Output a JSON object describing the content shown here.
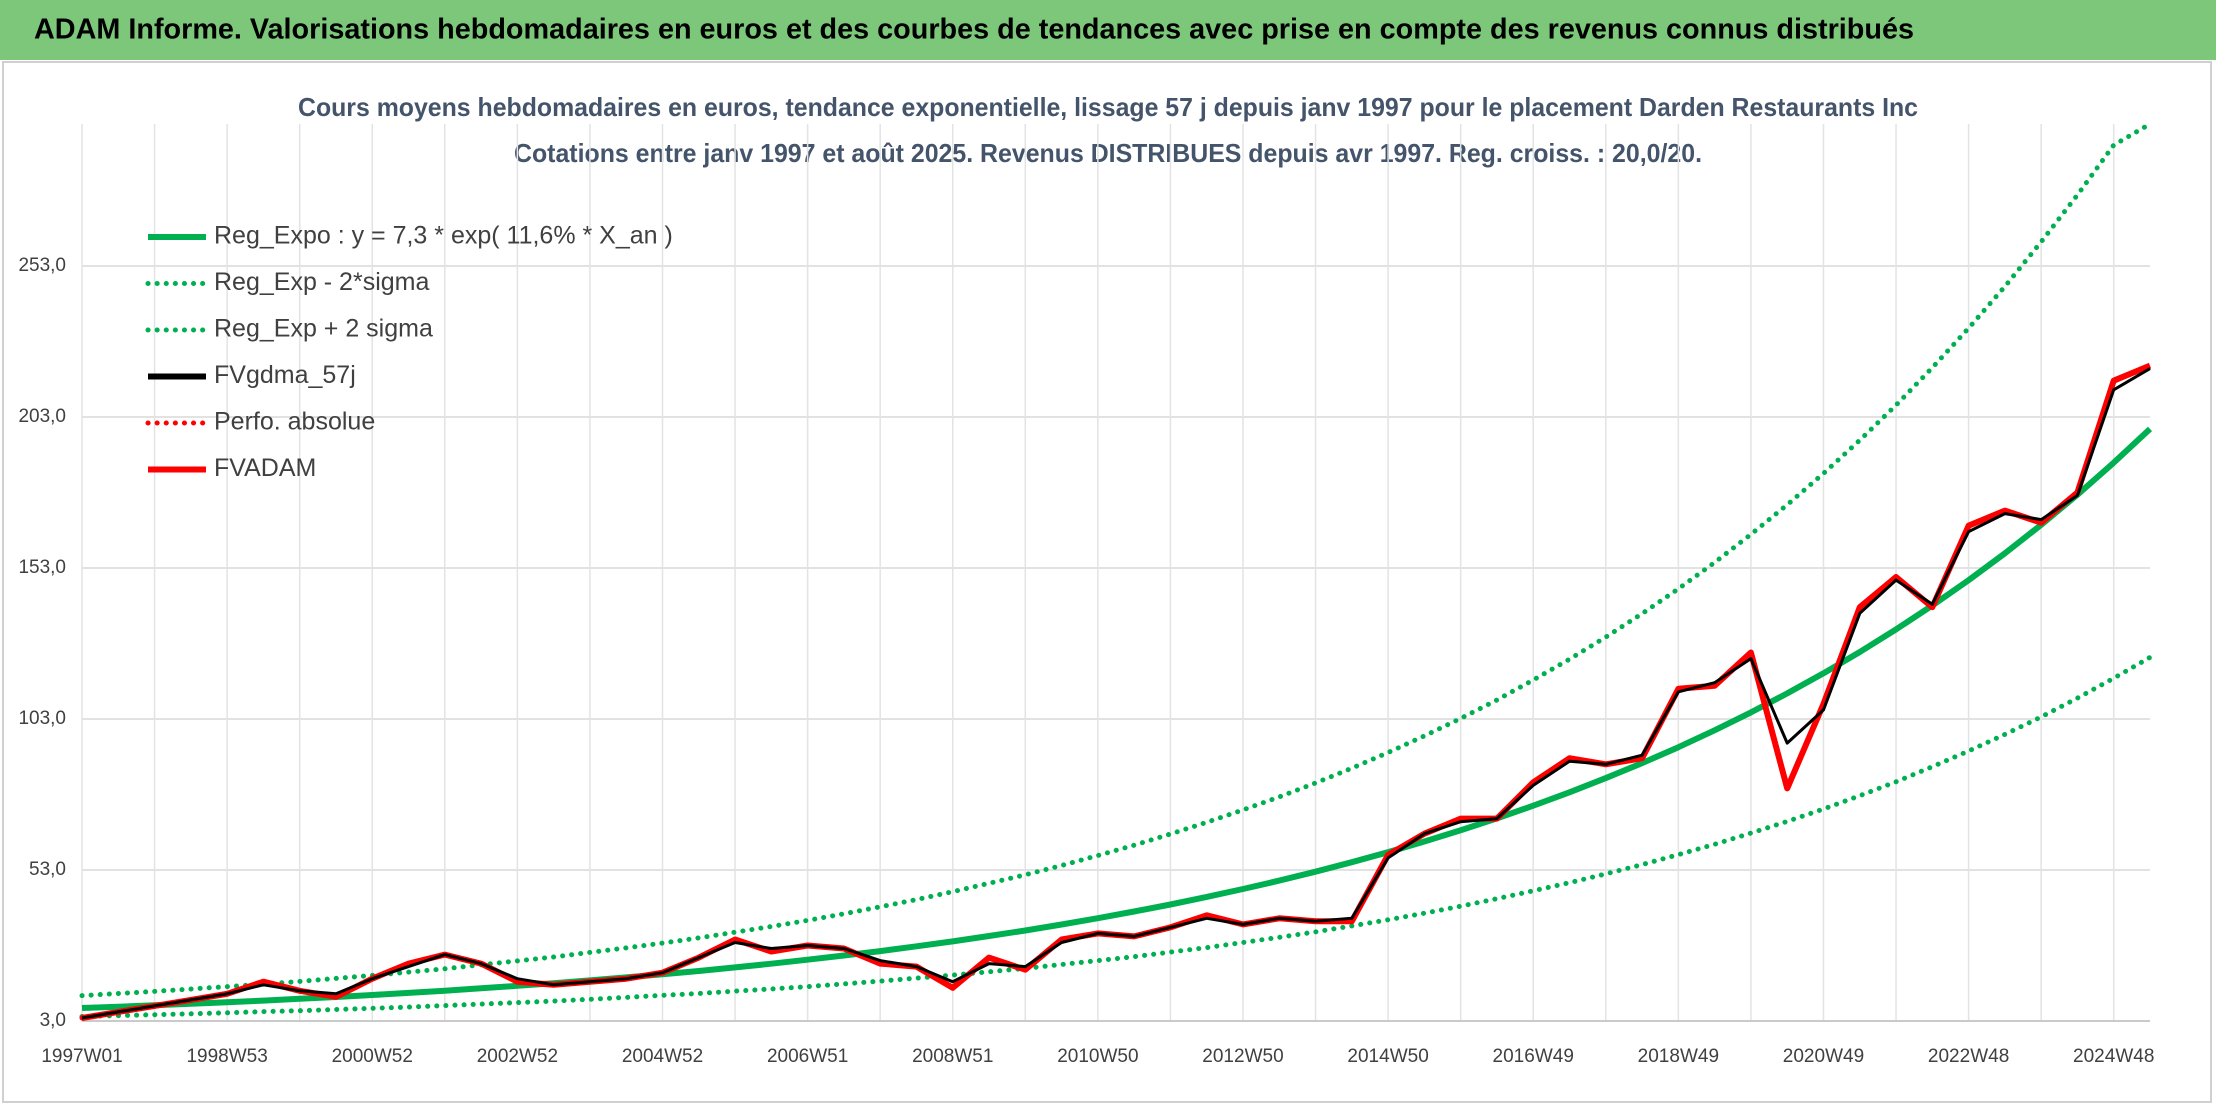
{
  "header": {
    "title": "ADAM Informe. Valorisations hebdomadaires en euros et des courbes de tendances avec prise en compte des revenus connus distribués"
  },
  "chart_data": {
    "type": "line",
    "title": "Cours moyens hebdomadaires en euros, tendance exponentielle, lissage 57 j depuis janv 1997 pour le placement Darden Restaurants Inc",
    "subtitle": "Cotations entre janv 1997 et août 2025. Revenus DISTRIBUES depuis avr 1997. Reg. croiss. : 20,0/20.",
    "categories": [
      "1997W01",
      null,
      null,
      null,
      "1998W53",
      null,
      null,
      null,
      "2000W52",
      null,
      null,
      null,
      "2002W52",
      null,
      null,
      null,
      "2004W52",
      null,
      null,
      null,
      "2006W51",
      null,
      null,
      null,
      "2008W51",
      null,
      null,
      null,
      "2010W50",
      null,
      null,
      null,
      "2012W50",
      null,
      null,
      null,
      "2014W50",
      null,
      null,
      null,
      "2016W49",
      null,
      null,
      null,
      "2018W49",
      null,
      null,
      null,
      "2020W49",
      null,
      null,
      null,
      "2022W48",
      null,
      null,
      null,
      "2024W48",
      null
    ],
    "ylim": [
      3,
      300
    ],
    "yticks": [
      {
        "value": 3,
        "label": "3,0"
      },
      {
        "value": 53,
        "label": "53,0"
      },
      {
        "value": 103,
        "label": "103,0"
      },
      {
        "value": 153,
        "label": "153,0"
      },
      {
        "value": 203,
        "label": "203,0"
      },
      {
        "value": 253,
        "label": "253,0"
      }
    ],
    "grid": true,
    "legend": "top-left",
    "series": [
      {
        "name": "Reg_Expo : y = 7,3 * exp( 11,6% *  X_an )",
        "color": "#00b050",
        "style": "solid",
        "values": [
          7.3,
          7.74,
          8.2,
          8.69,
          9.21,
          9.76,
          10.34,
          10.96,
          11.61,
          12.31,
          13.04,
          13.82,
          14.65,
          15.52,
          16.45,
          17.43,
          18.47,
          19.57,
          20.74,
          21.98,
          23.29,
          24.68,
          26.16,
          27.72,
          29.37,
          31.13,
          32.98,
          34.95,
          37.04,
          39.25,
          41.59,
          44.08,
          46.71,
          49.5,
          52.45,
          55.58,
          58.9,
          62.42,
          66.14,
          70.09,
          74.28,
          78.71,
          83.41,
          88.39,
          93.67,
          99.26,
          105.19,
          111.47,
          118.12,
          125.18,
          132.65,
          140.57,
          148.96,
          157.85,
          167.28,
          177.26,
          187.85,
          199.06
        ]
      },
      {
        "name": "Reg_Exp - 2*sigma",
        "color": "#00b050",
        "style": "dotted",
        "values": [
          4.5,
          4.8,
          5.1,
          5.4,
          5.7,
          6.1,
          6.4,
          6.8,
          7.2,
          7.6,
          8.1,
          8.6,
          9.1,
          9.6,
          10.2,
          10.8,
          11.5,
          12.1,
          12.9,
          13.6,
          14.4,
          15.3,
          16.2,
          17.2,
          18.2,
          19.3,
          20.4,
          21.7,
          23.0,
          24.3,
          25.8,
          27.3,
          29.0,
          30.7,
          32.5,
          34.5,
          36.5,
          38.7,
          41.0,
          43.5,
          46.1,
          48.8,
          51.7,
          54.8,
          58.1,
          61.5,
          65.2,
          69.1,
          73.2,
          77.6,
          82.2,
          87.2,
          92.4,
          97.9,
          103.7,
          109.9,
          116.5,
          123.4
        ]
      },
      {
        "name": "Reg_Exp + 2 sigma",
        "color": "#00b050",
        "style": "dotted",
        "values": [
          11.4,
          12.1,
          12.8,
          13.6,
          14.4,
          15.2,
          16.1,
          17.1,
          18.1,
          19.2,
          20.3,
          21.6,
          22.9,
          24.2,
          25.7,
          27.2,
          28.8,
          30.5,
          32.4,
          34.3,
          36.3,
          38.5,
          40.8,
          43.2,
          45.8,
          48.6,
          51.4,
          54.5,
          57.8,
          61.2,
          64.9,
          68.8,
          72.9,
          77.2,
          81.8,
          86.7,
          91.9,
          97.4,
          103.2,
          109.3,
          115.9,
          122.8,
          130.1,
          137.9,
          146.1,
          154.8,
          164.1,
          173.9,
          184.3,
          195.3,
          206.9,
          219.3,
          232.4,
          246.2,
          261.0,
          276.5,
          293.0,
          300
        ]
      },
      {
        "name": "FVgdma_57j",
        "color": "#000000",
        "style": "solid",
        "values": [
          4,
          6,
          8,
          10,
          12,
          15,
          13,
          12,
          17,
          21,
          25,
          22,
          17,
          15,
          16,
          17,
          19,
          24,
          29,
          27,
          28,
          27,
          23,
          21,
          16,
          22,
          21,
          29,
          32,
          31,
          34,
          37,
          35,
          37,
          36,
          37,
          57,
          65,
          69,
          70,
          81,
          89,
          88,
          91,
          112,
          115,
          123,
          95,
          106,
          138,
          149,
          141,
          165,
          171,
          169,
          177,
          212,
          219
        ]
      },
      {
        "name": "Perfo. absolue",
        "color": "#ff0000",
        "style": "dotted",
        "values": [
          4,
          6,
          8,
          10,
          12,
          16,
          13,
          11,
          17,
          22,
          25,
          22,
          16,
          15,
          16,
          17,
          19,
          24,
          30,
          26,
          28,
          27,
          22,
          21,
          14,
          24,
          20,
          30,
          32,
          31,
          34,
          38,
          35,
          37,
          36,
          36,
          58,
          65,
          70,
          70,
          82,
          90,
          88,
          90,
          113,
          114,
          125,
          80,
          108,
          140,
          150,
          140,
          167,
          172,
          168,
          178,
          215,
          220
        ]
      },
      {
        "name": "FVADAM",
        "color": "#ff0000",
        "style": "solid",
        "values": [
          4,
          6,
          8,
          10,
          12,
          16,
          13,
          11,
          17,
          22,
          25,
          22,
          16,
          15,
          16,
          17,
          19,
          24,
          30,
          26,
          28,
          27,
          22,
          21,
          14,
          24,
          20,
          30,
          32,
          31,
          34,
          38,
          35,
          37,
          36,
          36,
          58,
          65,
          70,
          70,
          82,
          90,
          88,
          90,
          113,
          114,
          125,
          80,
          108,
          140,
          150,
          140,
          167,
          172,
          168,
          178,
          215,
          220
        ]
      }
    ]
  }
}
